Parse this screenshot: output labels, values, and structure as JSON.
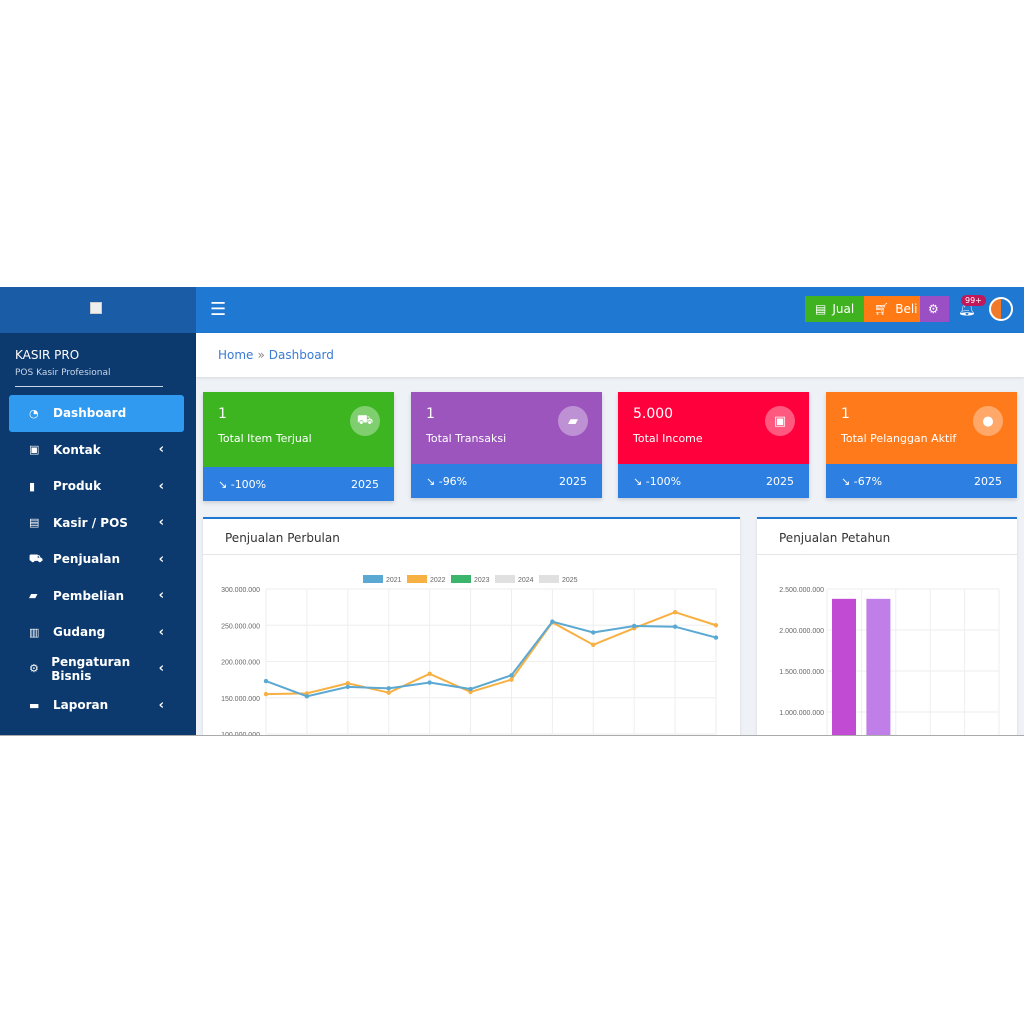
{
  "header": {
    "menu_icon": "hamburger-icon",
    "jual": "Jual",
    "beli": "Beli",
    "notif_badge": "99+",
    "colors": {
      "jual": "#3fb31f",
      "beli": "#ff7a14",
      "settings": "#9b4fc4"
    }
  },
  "sidebar": {
    "title": "KASIR PRO",
    "subtitle": "POS Kasir Profesional",
    "items": [
      {
        "label": "Dashboard",
        "icon": "◔",
        "active": true
      },
      {
        "label": "Kontak",
        "icon": "▣"
      },
      {
        "label": "Produk",
        "icon": "▮"
      },
      {
        "label": "Kasir / POS",
        "icon": "▤"
      },
      {
        "label": "Penjualan",
        "icon": "⛟"
      },
      {
        "label": "Pembelian",
        "icon": "▰"
      },
      {
        "label": "Gudang",
        "icon": "▥"
      },
      {
        "label": "Pengaturan Bisnis",
        "icon": "⚙"
      },
      {
        "label": "Laporan",
        "icon": "▬"
      }
    ]
  },
  "breadcrumb": {
    "home": "Home",
    "current": "Dashboard"
  },
  "cards": [
    {
      "value": "1",
      "label": "Total Item Terjual",
      "change": "-100%",
      "year": "2025",
      "color": "#3cb521",
      "icon": "⛟"
    },
    {
      "value": "1",
      "label": "Total Transaksi",
      "change": "-96%",
      "year": "2025",
      "color": "#9b55bd",
      "icon": "▰"
    },
    {
      "value": "5.000",
      "label": "Total Income",
      "change": "-100%",
      "year": "2025",
      "color": "#ff003d",
      "icon": "▣"
    },
    {
      "value": "1",
      "label": "Total Pelanggan Aktif",
      "change": "-67%",
      "year": "2025",
      "color": "#ff7a1a",
      "icon": "●"
    }
  ],
  "chart_data": [
    {
      "type": "line",
      "title": "Penjualan Perbulan",
      "legend": [
        "2021",
        "2022",
        "2023",
        "2024",
        "2025"
      ],
      "legend_colors": [
        "#5ba9d3",
        "#f7b042",
        "#3cb56c",
        "#e0e0e0",
        "#e0e0e0"
      ],
      "yticks": [
        "300.000.000",
        "250.000.000",
        "200.000.000",
        "150.000.000",
        "100.000.000"
      ],
      "ylim": [
        100000000,
        300000000
      ],
      "grid": true,
      "series": [
        {
          "name": "2021",
          "color": "#5ba9d3",
          "values": [
            173000000,
            152000000,
            165000000,
            163000000,
            171000000,
            162000000,
            181000000,
            255000000,
            240000000,
            249000000,
            248000000,
            233000000
          ]
        },
        {
          "name": "2022",
          "color": "#f7b042",
          "values": [
            155000000,
            156000000,
            170000000,
            157000000,
            183000000,
            158000000,
            175000000,
            254000000,
            223000000,
            246000000,
            268000000,
            250000000
          ]
        }
      ]
    },
    {
      "type": "bar",
      "title": "Penjualan Petahun",
      "yticks": [
        "2.500.000.000",
        "2.000.000.000",
        "1.500.000.000",
        "1.000.000.000"
      ],
      "ylim": [
        1000000000,
        2500000000
      ],
      "grid": true,
      "values": [
        2380000000,
        2380000000
      ],
      "colors": [
        "#c24bd4",
        "#c07fe8"
      ]
    }
  ]
}
